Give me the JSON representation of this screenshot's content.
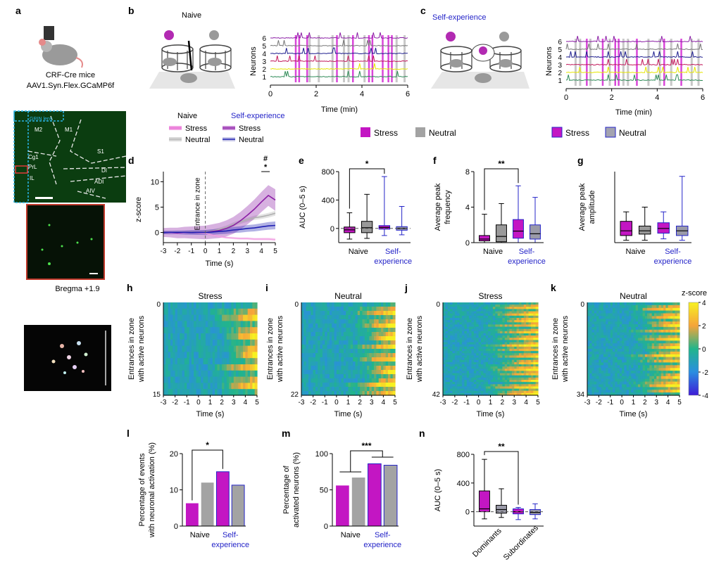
{
  "panels": {
    "a": {
      "label": "a",
      "caption_line1": "CRF-Cre mice",
      "caption_line2": "AAV1.Syn.Flex.GCaMP6f",
      "histology_labels": [
        "GRIN lens",
        "M2",
        "M1",
        "Cg1",
        "S1",
        "PrL",
        "DI",
        "IL",
        "ADI",
        "AIV"
      ],
      "bregma": "Bregma +1.9"
    },
    "b": {
      "label": "b",
      "title": "Naive",
      "ylabel": "Neurons",
      "xlabel": "Time (min)",
      "neuron_ticks": [
        "6",
        "5",
        "4",
        "3",
        "2",
        "1"
      ],
      "time_ticks": [
        "0",
        "2",
        "4",
        "6"
      ]
    },
    "c": {
      "label": "c",
      "title": "Self-experience",
      "ylabel": "Neurons",
      "xlabel": "Time (min)",
      "neuron_ticks": [
        "6",
        "5",
        "4",
        "3",
        "2",
        "1"
      ],
      "time_ticks": [
        "0",
        "2",
        "4",
        "6"
      ]
    },
    "legend_b": {
      "stress": "Stress",
      "neutral": "Neutral"
    },
    "legend_c": {
      "stress": "Stress",
      "neutral": "Neutral"
    },
    "legend_d": {
      "naive_header": "Naive",
      "self_header": "Self-experience",
      "naive_stress": "Stress",
      "naive_neutral": "Neutral",
      "self_stress": "Stress",
      "self_neutral": "Neutral"
    }
  },
  "chart_data": [
    {
      "panel": "d",
      "type": "line",
      "xlabel": "Time (s)",
      "ylabel": "z-score",
      "xlim": [
        -3,
        5
      ],
      "ylim": [
        -2,
        12
      ],
      "x_ticks": [
        -3,
        -2,
        -1,
        0,
        1,
        2,
        3,
        4,
        5
      ],
      "y_ticks": [
        0,
        5,
        10
      ],
      "annotation": "Entrance in zone",
      "sig_markers": [
        "#",
        "*"
      ],
      "x": [
        -3,
        -2.5,
        -2,
        -1.5,
        -1,
        -0.5,
        0,
        0.5,
        1,
        1.5,
        2,
        2.5,
        3,
        3.5,
        4,
        4.5,
        5
      ],
      "series": [
        {
          "name": "Naive Stress",
          "color": "#f2a3e3",
          "values": [
            0,
            -0.1,
            -0.2,
            -0.1,
            0,
            -0.1,
            -0.2,
            -0.5,
            -0.8,
            -1.0,
            -1.1,
            -1.2,
            -1.2,
            -1.3,
            -1.3,
            -1.3,
            -1.4
          ]
        },
        {
          "name": "Naive Neutral",
          "color": "#b0b0b0",
          "values": [
            0,
            0,
            0,
            0,
            0.1,
            0,
            0.1,
            0.3,
            0.6,
            1.0,
            1.6,
            2.1,
            2.5,
            2.9,
            3.1,
            3.4,
            3.8
          ]
        },
        {
          "name": "Self-experience Stress",
          "color": "#8b1fa5",
          "values": [
            0,
            0,
            -0.1,
            0,
            0,
            0,
            0,
            0.2,
            0.4,
            0.8,
            1.4,
            2.3,
            3.4,
            4.6,
            6.0,
            7.3,
            6.4
          ]
        },
        {
          "name": "Self-experience Neutral",
          "color": "#1f1fb3",
          "values": [
            0,
            0,
            0,
            0,
            0,
            0,
            0,
            0.1,
            0.2,
            0.3,
            0.5,
            0.6,
            0.8,
            0.9,
            1.1,
            1.3,
            1.4
          ]
        }
      ]
    },
    {
      "panel": "e",
      "type": "box",
      "ylabel": "AUC (0–5 s)",
      "ylim": [
        -200,
        800
      ],
      "y_ticks": [
        0,
        400,
        800
      ],
      "group_labels": [
        "Naive",
        "Self-experience"
      ],
      "sig": "*",
      "boxes": [
        {
          "name": "Naive Stress",
          "color": "#c316c3",
          "min": -150,
          "q1": -60,
          "median": -20,
          "q3": 20,
          "max": 220
        },
        {
          "name": "Naive Neutral",
          "color": "#999999",
          "min": -140,
          "q1": -60,
          "median": 10,
          "q3": 100,
          "max": 480
        },
        {
          "name": "Self Stress",
          "color": "#c316c3",
          "min": -100,
          "q1": -10,
          "median": 15,
          "q3": 40,
          "max": 730
        },
        {
          "name": "Self Neutral",
          "color": "#9a9aa8",
          "min": -90,
          "q1": -25,
          "median": 0,
          "q3": 25,
          "max": 310
        }
      ]
    },
    {
      "panel": "f",
      "type": "box",
      "ylabel": "Average peak frequency",
      "ylim": [
        0,
        8
      ],
      "y_ticks": [
        0,
        4,
        8
      ],
      "group_labels": [
        "Naive",
        "Self-experience"
      ],
      "sig": "**",
      "boxes": [
        {
          "name": "Naive Stress",
          "color": "#c316c3",
          "min": 0,
          "q1": 0.2,
          "median": 0.4,
          "q3": 0.8,
          "max": 3.2
        },
        {
          "name": "Naive Neutral",
          "color": "#999999",
          "min": 0,
          "q1": 0.1,
          "median": 0.7,
          "q3": 2.0,
          "max": 4.4
        },
        {
          "name": "Self Stress",
          "color": "#c316c3",
          "min": 0,
          "q1": 0.5,
          "median": 1.3,
          "q3": 2.6,
          "max": 6.4
        },
        {
          "name": "Self Neutral",
          "color": "#9a9aa8",
          "min": 0,
          "q1": 0.4,
          "median": 1.0,
          "q3": 2.0,
          "max": 5.1
        }
      ]
    },
    {
      "panel": "g",
      "type": "box",
      "ylabel": "Average peak amplitude",
      "ylim": [
        0,
        15
      ],
      "y_ticks": [],
      "group_labels": [
        "Naive",
        "Self-experience"
      ],
      "boxes": [
        {
          "name": "Naive Stress",
          "color": "#c316c3",
          "min": 0.5,
          "q1": 1.5,
          "median": 2.5,
          "q3": 4.5,
          "max": 6.5
        },
        {
          "name": "Naive Neutral",
          "color": "#999999",
          "min": 0.5,
          "q1": 1.8,
          "median": 2.5,
          "q3": 3.5,
          "max": 7.5
        },
        {
          "name": "Self Stress",
          "color": "#c316c3",
          "min": 0.8,
          "q1": 2.0,
          "median": 3.0,
          "q3": 4.2,
          "max": 6.5
        },
        {
          "name": "Self Neutral",
          "color": "#9a9aa8",
          "min": 0.5,
          "q1": 1.5,
          "median": 2.5,
          "q3": 3.5,
          "max": 14.0
        }
      ]
    },
    {
      "panel": "h",
      "type": "heatmap",
      "title": "Stress",
      "ylabel": "Entrances in zone with active neurons",
      "xlabel": "Time (s)",
      "x_ticks": [
        -3,
        -2,
        -1,
        0,
        1,
        2,
        3,
        4,
        5
      ],
      "y_ticks": [
        "0",
        "15"
      ],
      "rows": 15,
      "onset_frac": 0.7
    },
    {
      "panel": "i",
      "type": "heatmap",
      "title": "Neutral",
      "ylabel": "Entrances in zone with active neurons",
      "xlabel": "Time (s)",
      "x_ticks": [
        -3,
        -2,
        -1,
        0,
        1,
        2,
        3,
        4,
        5
      ],
      "y_ticks": [
        "0",
        "22"
      ],
      "rows": 22,
      "onset_frac": 0.65
    },
    {
      "panel": "j",
      "type": "heatmap",
      "title": "Stress",
      "ylabel": "Entrances in zone with active neurons",
      "xlabel": "Time (s)",
      "x_ticks": [
        -3,
        -2,
        -1,
        0,
        1,
        2,
        3,
        4,
        5
      ],
      "y_ticks": [
        "0",
        "42"
      ],
      "rows": 42,
      "onset_frac": 0.55
    },
    {
      "panel": "k",
      "type": "heatmap",
      "title": "Neutral",
      "ylabel": "Entrances in zone with active neurons",
      "xlabel": "Time (s)",
      "x_ticks": [
        -3,
        -2,
        -1,
        0,
        1,
        2,
        3,
        4,
        5
      ],
      "y_ticks": [
        "0",
        "34"
      ],
      "rows": 34,
      "onset_frac": 0.6,
      "colorbar_label": "z-score",
      "colorbar_ticks": [
        4,
        2,
        0,
        -2,
        -4
      ]
    },
    {
      "panel": "l",
      "type": "bar",
      "ylabel": "Percentage of events with neuronal activation (%)",
      "ylim": [
        0,
        20
      ],
      "y_ticks": [
        0,
        10,
        20
      ],
      "group_labels": [
        "Naive",
        "Self-experience"
      ],
      "sig": "*",
      "bars": [
        {
          "name": "Naive Stress",
          "color": "#c316c3",
          "value": 6.3
        },
        {
          "name": "Naive Neutral",
          "color": "#a3a3a3",
          "value": 12.0
        },
        {
          "name": "Self Stress",
          "color": "#c316c3",
          "value": 15.0
        },
        {
          "name": "Self Neutral",
          "color": "#a3a3a3",
          "value": 11.3
        }
      ]
    },
    {
      "panel": "m",
      "type": "bar",
      "ylabel": "Percentage of activated neurons (%)",
      "ylim": [
        0,
        100
      ],
      "y_ticks": [
        0,
        50,
        100
      ],
      "group_labels": [
        "Naive",
        "Self-experience"
      ],
      "sig": "***",
      "bars": [
        {
          "name": "Naive Stress",
          "color": "#c316c3",
          "value": 56
        },
        {
          "name": "Naive Neutral",
          "color": "#a3a3a3",
          "value": 67
        },
        {
          "name": "Self Stress",
          "color": "#c316c3",
          "value": 86
        },
        {
          "name": "Self Neutral",
          "color": "#a3a3a3",
          "value": 84
        }
      ]
    },
    {
      "panel": "n",
      "type": "box",
      "ylabel": "AUC (0–5 s)",
      "ylim": [
        -200,
        800
      ],
      "y_ticks": [
        0,
        400,
        800
      ],
      "group_labels": [
        "Dominants",
        "Subordinates"
      ],
      "sig": "**",
      "boxes": [
        {
          "name": "Dominants Stress",
          "color": "#c316c3",
          "min": -100,
          "q1": 0,
          "median": 40,
          "q3": 290,
          "max": 730
        },
        {
          "name": "Dominants Neutral",
          "color": "#9a9aa8",
          "min": -80,
          "q1": -20,
          "median": 30,
          "q3": 90,
          "max": 320
        },
        {
          "name": "Subordinates Stress",
          "color": "#c316c3",
          "min": -110,
          "q1": -30,
          "median": 0,
          "q3": 40,
          "max": 60
        },
        {
          "name": "Subordinates Neutral",
          "color": "#9a9aa8",
          "min": -100,
          "q1": -40,
          "median": -10,
          "q3": 30,
          "max": 110
        }
      ]
    }
  ]
}
